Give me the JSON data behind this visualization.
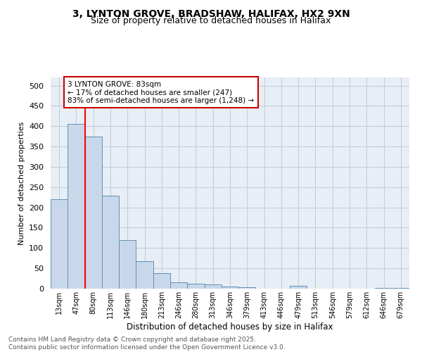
{
  "title_line1": "3, LYNTON GROVE, BRADSHAW, HALIFAX, HX2 9XN",
  "title_line2": "Size of property relative to detached houses in Halifax",
  "xlabel": "Distribution of detached houses by size in Halifax",
  "ylabel": "Number of detached properties",
  "categories": [
    "13sqm",
    "47sqm",
    "80sqm",
    "113sqm",
    "146sqm",
    "180sqm",
    "213sqm",
    "246sqm",
    "280sqm",
    "313sqm",
    "346sqm",
    "379sqm",
    "413sqm",
    "446sqm",
    "479sqm",
    "513sqm",
    "546sqm",
    "579sqm",
    "612sqm",
    "646sqm",
    "679sqm"
  ],
  "values": [
    220,
    405,
    375,
    228,
    120,
    68,
    38,
    16,
    13,
    11,
    6,
    4,
    0,
    0,
    7,
    0,
    0,
    0,
    0,
    2,
    1
  ],
  "bar_color": "#c8d8ea",
  "bar_edgecolor": "#6090b8",
  "property_line_x": 2.0,
  "property_line_label": "3 LYNTON GROVE: 83sqm",
  "annotation_smaller": "← 17% of detached houses are smaller (247)",
  "annotation_larger": "83% of semi-detached houses are larger (1,248) →",
  "annotation_box_color": "#cc0000",
  "ylim": [
    0,
    520
  ],
  "yticks": [
    0,
    50,
    100,
    150,
    200,
    250,
    300,
    350,
    400,
    450,
    500
  ],
  "grid_color": "#c4cdd8",
  "background_color": "#e8eef5",
  "footer": "Contains HM Land Registry data © Crown copyright and database right 2025.\nContains public sector information licensed under the Open Government Licence v3.0."
}
